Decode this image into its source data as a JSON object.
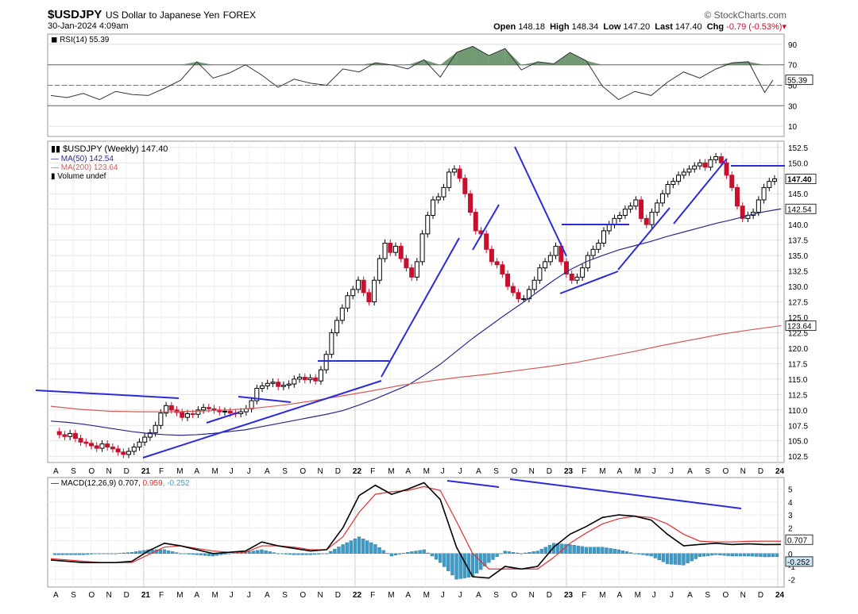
{
  "header": {
    "symbol": "$USDJPY",
    "description": "US Dollar to Japanese Yen",
    "exchange": "FOREX",
    "brand": "© StockCharts.com",
    "date": "30-Jan-2024 4:09am",
    "open_label": "Open",
    "open": "148.18",
    "high_label": "High",
    "high": "148.34",
    "low_label": "Low",
    "low": "147.20",
    "last_label": "Last",
    "last": "147.40",
    "chg_label": "Chg",
    "chg": "-0.79 (-0.53%)"
  },
  "colors": {
    "up": "#000000",
    "down": "#c8102e",
    "ma50": "#2a2a8c",
    "ma200": "#d65a5a",
    "trend": "#2b2bd9",
    "rsi_fill": "#5a8a5a",
    "hist": "#3d9cc7",
    "macd_signal": "#e03030"
  },
  "chart_data": [
    {
      "type": "line",
      "panel": "RSI",
      "legend": "RSI(14) 55.39",
      "current": "55.39",
      "y_ticks": [
        "90",
        "70",
        "50",
        "30",
        "10"
      ],
      "ylim": [
        0,
        100
      ],
      "reference_lines": [
        70,
        30
      ],
      "midline": 50,
      "series": [
        {
          "name": "RSI(14)",
          "x": [
            0,
            4,
            8,
            12,
            16,
            20,
            24,
            28,
            32,
            36,
            40,
            44,
            48,
            52,
            56,
            60,
            64,
            68,
            72,
            76,
            80,
            84,
            88,
            92,
            96,
            100,
            104,
            108,
            112,
            116,
            120,
            124,
            128,
            132,
            136,
            140,
            144,
            148,
            152,
            156,
            160,
            164,
            168,
            172,
            176,
            178
          ],
          "values": [
            40,
            38,
            42,
            36,
            44,
            41,
            40,
            47,
            55,
            73,
            57,
            62,
            70,
            60,
            48,
            56,
            52,
            50,
            66,
            63,
            72,
            70,
            66,
            75,
            58,
            82,
            88,
            79,
            86,
            65,
            73,
            71,
            82,
            74,
            49,
            36,
            44,
            40,
            53,
            63,
            57,
            66,
            72,
            73,
            43,
            55
          ]
        }
      ]
    },
    {
      "type": "candlestick",
      "panel": "price",
      "title": "$USDJPY (Weekly) 147.40",
      "legend": [
        "MA(50) 142.54",
        "MA(200) 123.64",
        "Volume undef"
      ],
      "y_ticks": [
        "152.5",
        "150.0",
        "147.5",
        "145.0",
        "142.5",
        "140.0",
        "137.5",
        "135.0",
        "132.5",
        "130.0",
        "127.5",
        "125.0",
        "122.5",
        "120.0",
        "117.5",
        "115.0",
        "112.5",
        "110.0",
        "107.5",
        "105.0",
        "102.5"
      ],
      "ylim": [
        101.5,
        153.5
      ],
      "last_label": "147.40",
      "ma50_label": "142.54",
      "ma200_label": "123.64",
      "x_labels": [
        "A",
        "S",
        "O",
        "N",
        "D",
        "21",
        "F",
        "M",
        "A",
        "M",
        "J",
        "J",
        "A",
        "S",
        "O",
        "N",
        "D",
        "22",
        "F",
        "M",
        "A",
        "M",
        "J",
        "J",
        "A",
        "S",
        "O",
        "N",
        "D",
        "23",
        "F",
        "M",
        "A",
        "M",
        "J",
        "J",
        "A",
        "S",
        "O",
        "N",
        "D",
        "24"
      ],
      "closes": [
        106.5,
        106,
        105.7,
        106.2,
        105.4,
        104.8,
        104.6,
        104.2,
        103.8,
        104.5,
        104,
        103.7,
        103.2,
        102.8,
        103.3,
        104,
        104.8,
        105.6,
        106.3,
        107.5,
        109.5,
        110.7,
        110,
        109.6,
        108.8,
        109.4,
        109.3,
        110,
        110.4,
        110.2,
        110,
        109.7,
        109.8,
        109.5,
        109.4,
        109.7,
        110.2,
        111.5,
        113.5,
        113.9,
        114.3,
        114.5,
        113.8,
        114,
        114.2,
        115,
        115.3,
        114.9,
        115.2,
        114.7,
        116.5,
        119,
        122.5,
        124.5,
        126.5,
        128.5,
        129.5,
        131,
        129,
        127.5,
        131,
        134.5,
        137,
        135.5,
        136.5,
        134.5,
        133,
        131.5,
        134,
        138.5,
        141.5,
        144,
        144.5,
        146,
        148.5,
        149,
        147.5,
        145,
        142,
        139,
        138.5,
        136,
        134,
        133.5,
        132,
        130,
        129,
        128,
        128,
        129.5,
        131,
        133,
        134,
        135,
        136.5,
        134,
        132,
        131,
        131.5,
        133,
        135,
        136,
        137,
        139,
        140,
        141,
        141.5,
        142.5,
        143,
        144,
        141,
        140,
        142,
        143.5,
        145,
        146.5,
        147,
        148,
        148.5,
        149,
        149.5,
        150,
        149.3,
        150.5,
        151,
        150,
        148,
        146,
        143,
        141,
        141.5,
        142,
        144,
        146,
        147,
        147.4
      ],
      "ma50": [
        108.2,
        108,
        107.7,
        107.3,
        106.9,
        106.5,
        106.2,
        106,
        105.9,
        106,
        106.2,
        106.5,
        106.8,
        107.3,
        107.8,
        108.3,
        108.8,
        109.3,
        109.9,
        110.8,
        111.8,
        112.9,
        114,
        115.6,
        117.4,
        119.5,
        121.6,
        123.5,
        125.4,
        127.2,
        129.1,
        131,
        132.7,
        134,
        135,
        135.9,
        136.6,
        137.3,
        138.1,
        138.8,
        139.5,
        140.2,
        140.8,
        141.5,
        142.1,
        142.54
      ],
      "ma200": [
        110.6,
        110.1,
        109.8,
        109.7,
        109.7,
        109.8,
        110,
        110.3,
        110.8,
        111.5,
        112.3,
        113.1,
        114,
        114.7,
        115.3,
        115.8,
        116.4,
        117,
        117.7,
        118.6,
        119.5,
        120.5,
        121.4,
        122.3,
        123.0,
        123.64
      ]
    },
    {
      "type": "line",
      "panel": "MACD",
      "legend_label": "MACD(12,26,9)",
      "macd_value": "0.707",
      "signal_value": "0.959",
      "hist_value": "-0.252",
      "y_ticks": [
        "5",
        "4",
        "3",
        "2",
        "1",
        "0",
        "-1",
        "-2"
      ],
      "ylim": [
        -2.6,
        5.9
      ],
      "series": [
        {
          "name": "MACD",
          "x": [
            0,
            4,
            8,
            12,
            16,
            20,
            24,
            28,
            32,
            36,
            40,
            44,
            48,
            52,
            56,
            60,
            64,
            68,
            72,
            76,
            80,
            84,
            88,
            92,
            96,
            100,
            104,
            108,
            112,
            116,
            120,
            124,
            128,
            132,
            136,
            140,
            144,
            148,
            152,
            156,
            160,
            164,
            168,
            172,
            176,
            180
          ],
          "values": [
            -0.5,
            -0.6,
            -0.7,
            -0.7,
            -0.7,
            -0.6,
            0.2,
            0.8,
            0.6,
            0.3,
            0,
            0.1,
            0.2,
            0.9,
            0.6,
            0.4,
            0.2,
            0.3,
            2,
            4.5,
            5.3,
            4.6,
            5.0,
            5.5,
            4.2,
            0.5,
            -1.8,
            -1.9,
            -1,
            -1.2,
            -1.0,
            0.5,
            1.5,
            2.1,
            2.8,
            3,
            2.9,
            2.6,
            1.5,
            0.6,
            0.707,
            0.8,
            0.7,
            0.75,
            0.7,
            0.707
          ]
        },
        {
          "name": "Signal",
          "x": [
            0,
            4,
            8,
            12,
            16,
            20,
            24,
            28,
            32,
            36,
            40,
            44,
            48,
            52,
            56,
            60,
            64,
            68,
            72,
            76,
            80,
            84,
            88,
            92,
            96,
            100,
            104,
            108,
            112,
            116,
            120,
            124,
            128,
            132,
            136,
            140,
            144,
            148,
            152,
            156,
            160,
            164,
            168,
            172,
            176,
            180
          ],
          "values": [
            -0.4,
            -0.5,
            -0.6,
            -0.7,
            -0.7,
            -0.7,
            -0.1,
            0.5,
            0.6,
            0.4,
            0.2,
            0.1,
            0.1,
            0.6,
            0.6,
            0.5,
            0.3,
            0.3,
            1.3,
            3.2,
            4.6,
            4.8,
            4.9,
            5.2,
            4.9,
            2.5,
            0,
            -1.2,
            -1.2,
            -1.2,
            -1.2,
            -0.3,
            0.8,
            1.6,
            2.3,
            2.7,
            2.9,
            2.8,
            2.3,
            1.5,
            0.959,
            0.9,
            0.9,
            0.95,
            0.96,
            0.959
          ]
        }
      ]
    }
  ]
}
